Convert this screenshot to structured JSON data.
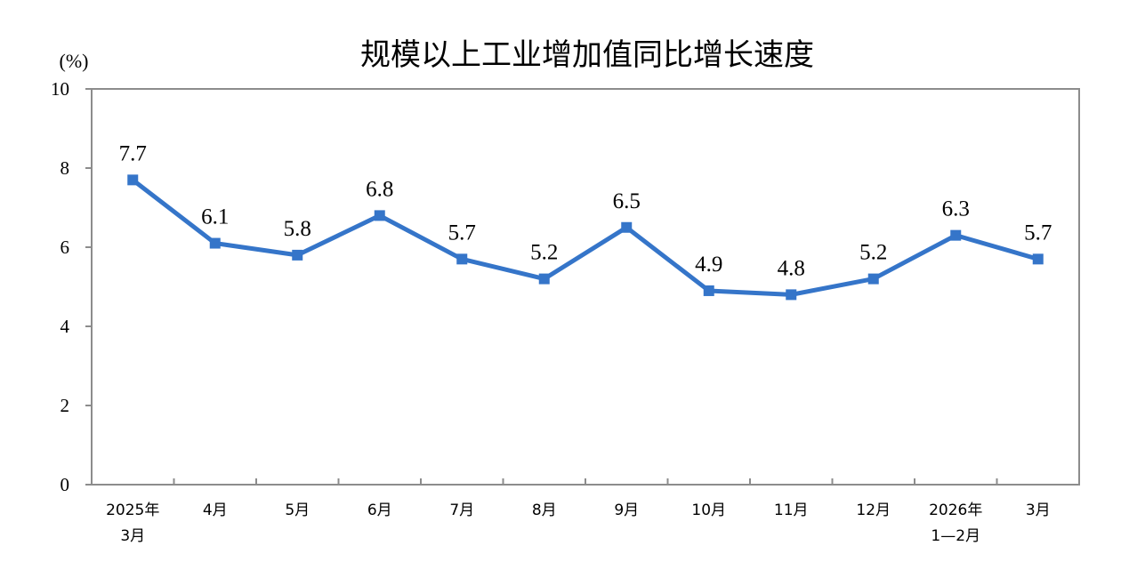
{
  "chart_data": {
    "type": "line",
    "title": "规模以上工业增加值同比增长速度",
    "ylabel": "(%)",
    "ylim": [
      0,
      10
    ],
    "yticks": [
      "0",
      "2",
      "4",
      "6",
      "8",
      "10"
    ],
    "categories": [
      [
        "2025年",
        "3月"
      ],
      [
        "4月"
      ],
      [
        "5月"
      ],
      [
        "6月"
      ],
      [
        "7月"
      ],
      [
        "8月"
      ],
      [
        "9月"
      ],
      [
        "10月"
      ],
      [
        "11月"
      ],
      [
        "12月"
      ],
      [
        "2026年",
        "1—2月"
      ],
      [
        "3月"
      ]
    ],
    "values": [
      7.7,
      6.1,
      5.8,
      6.8,
      5.7,
      5.2,
      6.5,
      4.9,
      4.8,
      5.2,
      6.3,
      5.7
    ],
    "value_labels": [
      "7.7",
      "6.1",
      "5.8",
      "6.8",
      "5.7",
      "5.2",
      "6.5",
      "4.9",
      "4.8",
      "5.2",
      "6.3",
      "5.7"
    ],
    "line_color": "#3575C9",
    "grid": false,
    "legend": "none"
  }
}
